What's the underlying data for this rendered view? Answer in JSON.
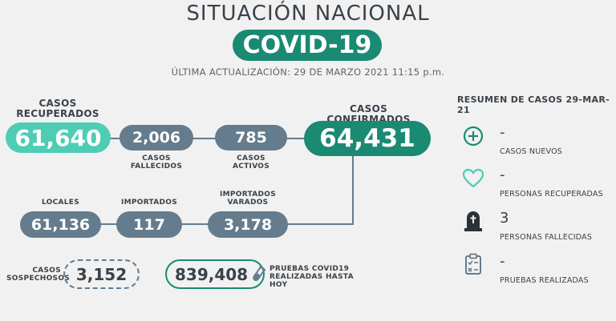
{
  "header": {
    "title": "SITUACIÓN NACIONAL",
    "badge": "COVID-19",
    "updated": "ÚLTIMA ACTUALIZACIÓN: 29 DE MARZO 2021 11:15 p.m."
  },
  "stats": {
    "recovered": {
      "label_1": "CASOS",
      "label_2": "RECUPERADOS",
      "value": "61,640"
    },
    "deaths": {
      "value": "2,006",
      "label_1": "CASOS",
      "label_2": "FALLECIDOS"
    },
    "active": {
      "value": "785",
      "label_1": "CASOS",
      "label_2": "ACTIVOS"
    },
    "confirmed": {
      "label_1": "CASOS",
      "label_2": "CONFIRMADOS",
      "value": "64,431"
    },
    "local": {
      "label": "LOCALES",
      "value": "61,136"
    },
    "imported": {
      "label": "IMPORTADOS",
      "value": "117"
    },
    "stranded": {
      "label_1": "IMPORTADOS",
      "label_2": "VARADOS",
      "value": "3,178"
    },
    "suspected": {
      "label_1": "CASOS",
      "label_2": "SOSPECHOSOS",
      "value": "3,152"
    },
    "tests": {
      "value": "839,408",
      "label_1": "PRUEBAS COVID19",
      "label_2": "REALIZADAS HASTA HOY"
    }
  },
  "summary": {
    "title": "RESUMEN DE CASOS 29-MAR-21",
    "items": [
      {
        "icon": "plus-circle-icon",
        "value": "-",
        "label": "CASOS NUEVOS"
      },
      {
        "icon": "heart-icon",
        "value": "-",
        "label": "PERSONAS RECUPERADAS"
      },
      {
        "icon": "tombstone-icon",
        "value": "3",
        "label": "PERSONAS FALLECIDAS"
      },
      {
        "icon": "clipboard-icon",
        "value": "-",
        "label": "PRUEBAS REALIZADAS"
      }
    ]
  },
  "colors": {
    "teal_light": "#4ecdb4",
    "teal_dark": "#1a8a72",
    "slate": "#647c8d",
    "background": "#f1f1f1"
  }
}
